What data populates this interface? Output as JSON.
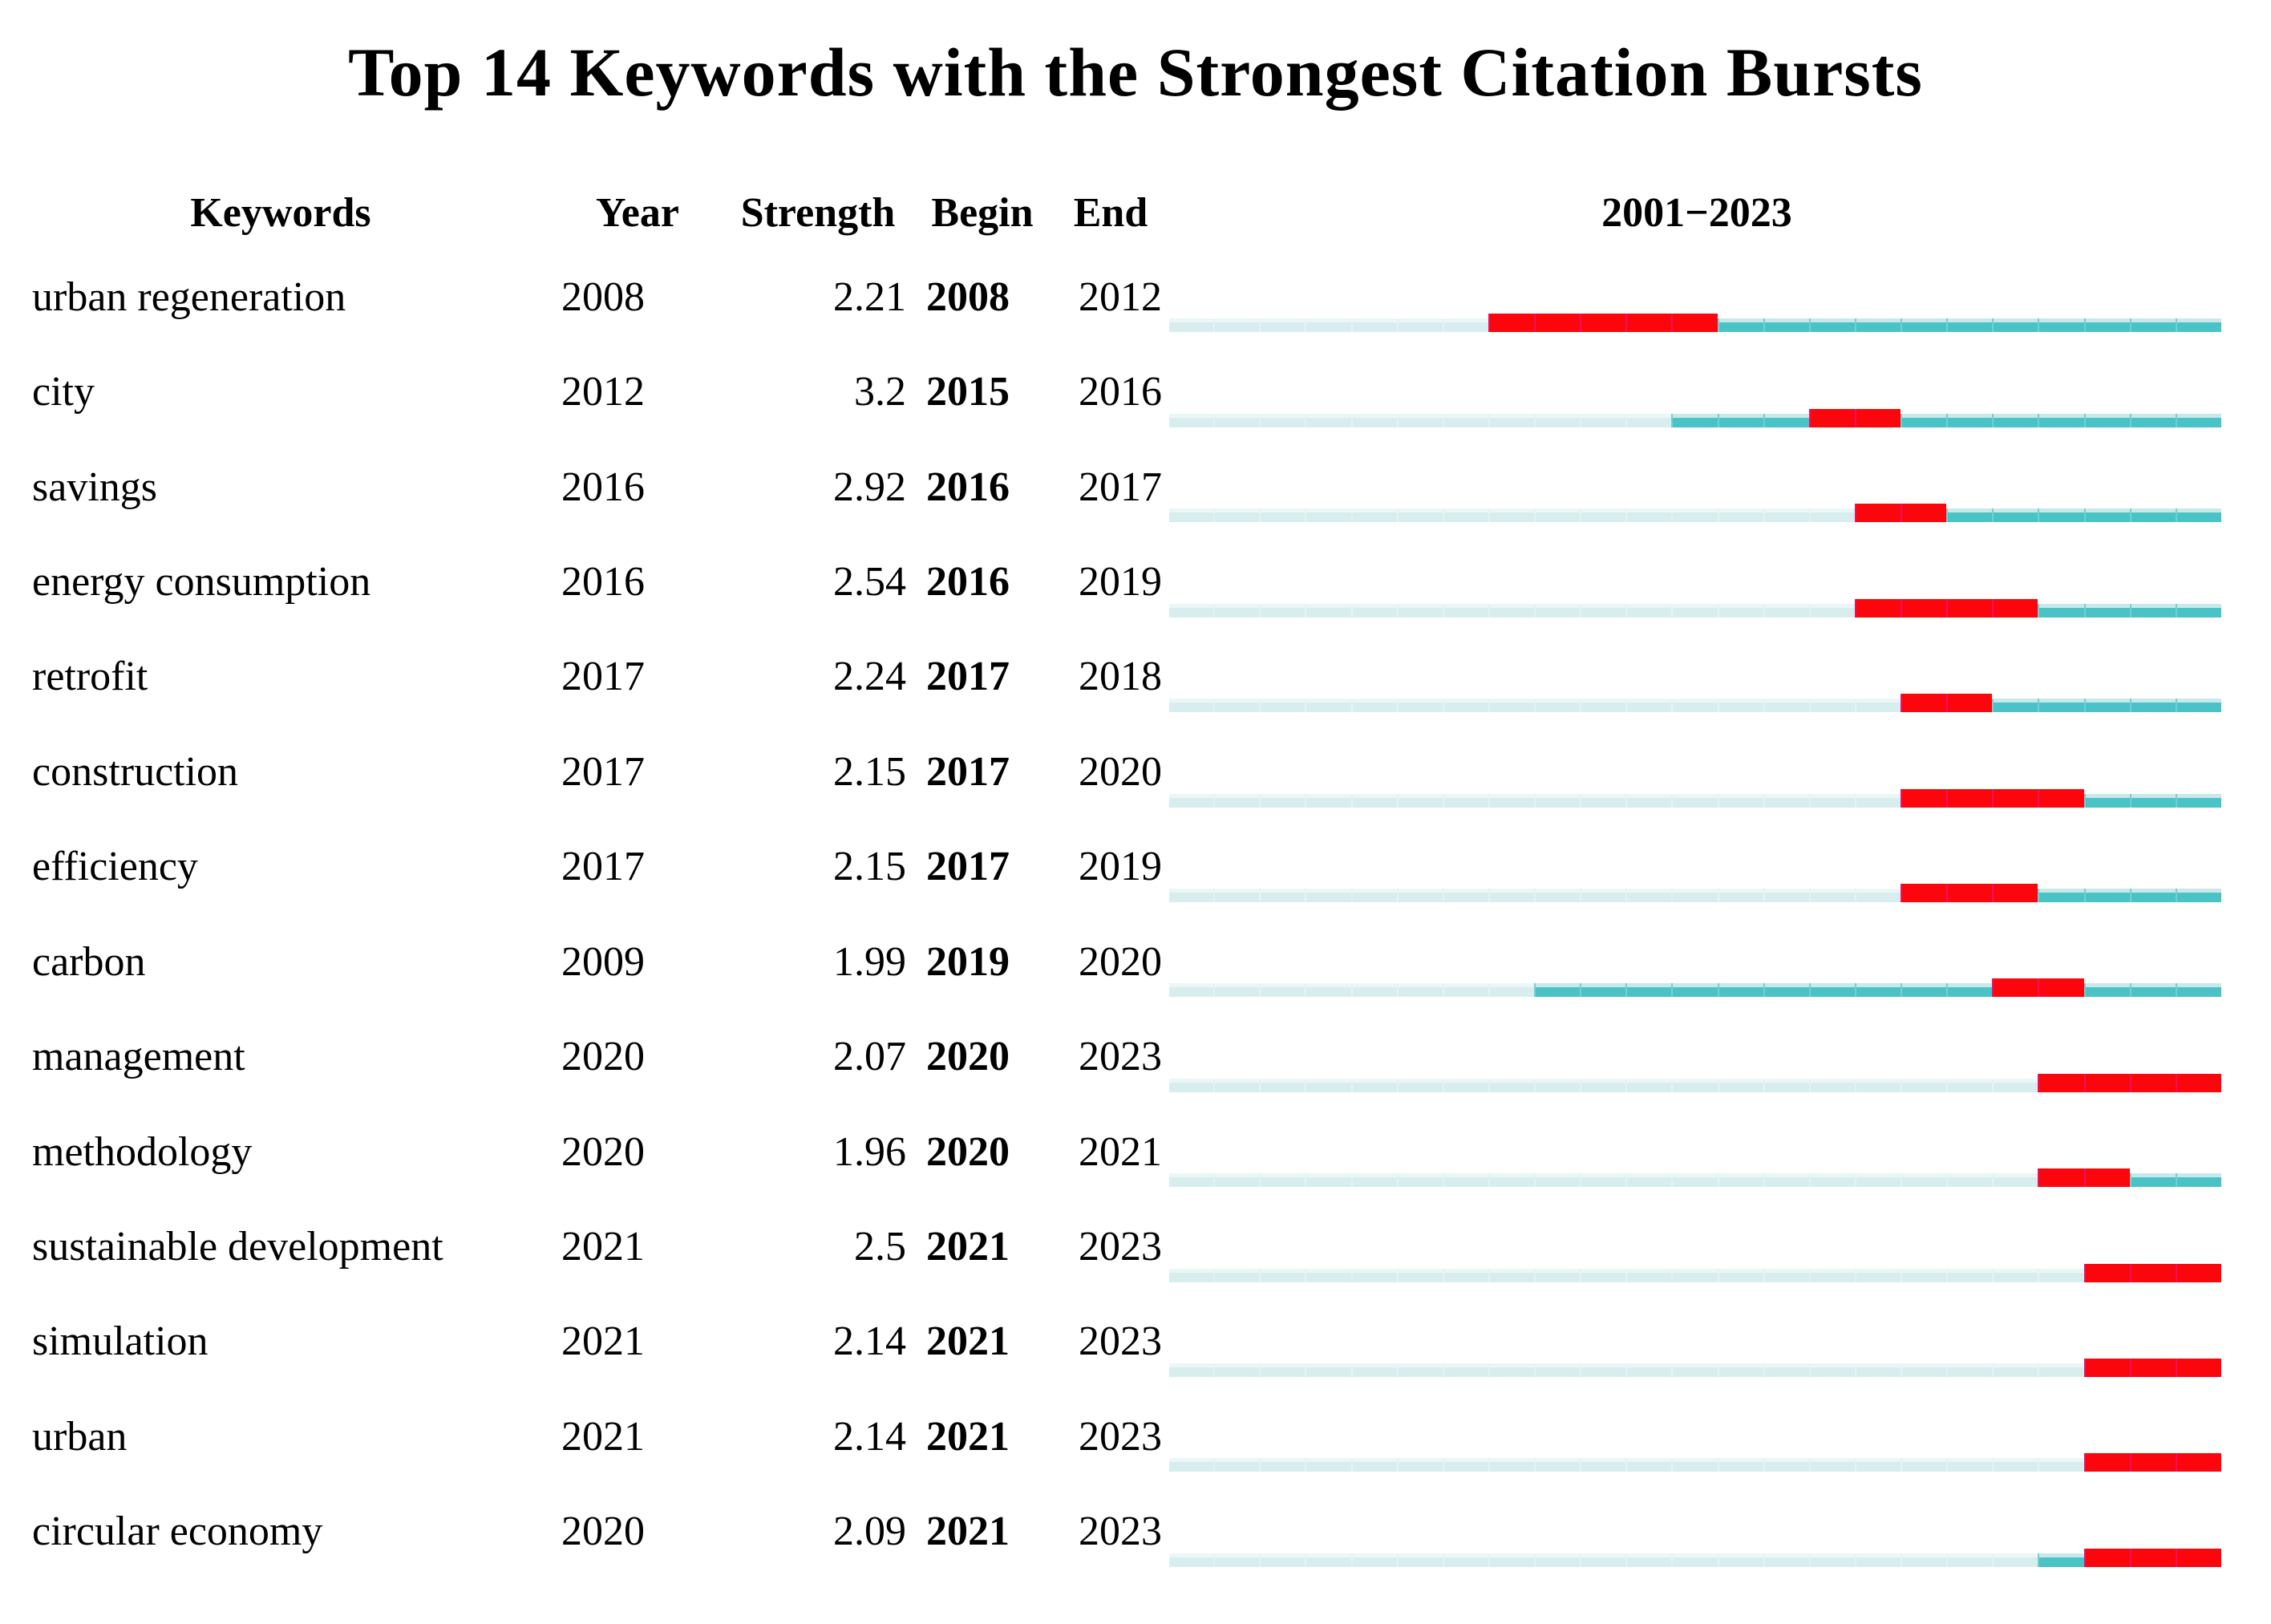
{
  "chart_data": {
    "type": "table",
    "subtype": "citation-burst-timeline",
    "title": "Top 14 Keywords with the Strongest Citation Bursts",
    "columns": [
      "Keywords",
      "Year",
      "Strength",
      "Begin",
      "End",
      "2001−2023"
    ],
    "timeline": {
      "start": 2001,
      "end": 2023
    },
    "legend": {
      "burst_color": "#FA060C",
      "burst_separator_color": "#EE1060",
      "active_color": "#49C3C5",
      "active_top_edge_color": "#C9E8EA",
      "inactive_color": "#D8EEEE",
      "inactive_top_edge_color": "#EAF7F6",
      "text_color": "#000000",
      "background_color": "#FFFFFF"
    },
    "rows": [
      {
        "keyword": "urban regeneration",
        "year": 2008,
        "strength": "2.21",
        "begin": 2008,
        "end": 2012
      },
      {
        "keyword": "city",
        "year": 2012,
        "strength": "3.2",
        "begin": 2015,
        "end": 2016
      },
      {
        "keyword": "savings",
        "year": 2016,
        "strength": "2.92",
        "begin": 2016,
        "end": 2017
      },
      {
        "keyword": "energy consumption",
        "year": 2016,
        "strength": "2.54",
        "begin": 2016,
        "end": 2019
      },
      {
        "keyword": "retrofit",
        "year": 2017,
        "strength": "2.24",
        "begin": 2017,
        "end": 2018
      },
      {
        "keyword": "construction",
        "year": 2017,
        "strength": "2.15",
        "begin": 2017,
        "end": 2020
      },
      {
        "keyword": "efficiency",
        "year": 2017,
        "strength": "2.15",
        "begin": 2017,
        "end": 2019
      },
      {
        "keyword": "carbon",
        "year": 2009,
        "strength": "1.99",
        "begin": 2019,
        "end": 2020
      },
      {
        "keyword": "management",
        "year": 2020,
        "strength": "2.07",
        "begin": 2020,
        "end": 2023
      },
      {
        "keyword": "methodology",
        "year": 2020,
        "strength": "1.96",
        "begin": 2020,
        "end": 2021
      },
      {
        "keyword": "sustainable development",
        "year": 2021,
        "strength": "2.5",
        "begin": 2021,
        "end": 2023
      },
      {
        "keyword": "simulation",
        "year": 2021,
        "strength": "2.14",
        "begin": 2021,
        "end": 2023
      },
      {
        "keyword": "urban",
        "year": 2021,
        "strength": "2.14",
        "begin": 2021,
        "end": 2023
      },
      {
        "keyword": "circular economy",
        "year": 2020,
        "strength": "2.09",
        "begin": 2021,
        "end": 2023
      }
    ]
  }
}
